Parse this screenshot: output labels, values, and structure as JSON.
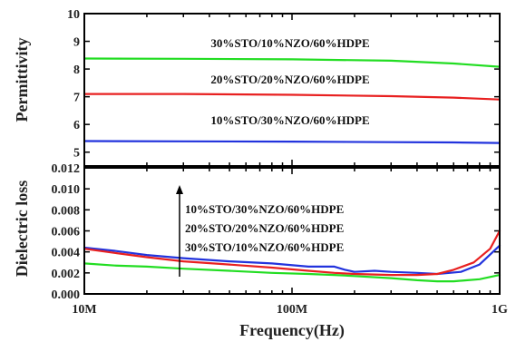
{
  "chart_data": [
    {
      "type": "line",
      "ylabel": "Permittivity",
      "ylim": [
        4.5,
        10
      ],
      "yticks": [
        "5",
        "6",
        "7",
        "8",
        "9",
        "10"
      ],
      "xscale": "log",
      "xlim": [
        10000000,
        1000000000
      ],
      "series": [
        {
          "name": "30%STO/10%NZO/60%HDPE",
          "color": "#22dd22",
          "x": [
            10000000,
            30000000,
            100000000,
            300000000,
            600000000,
            1000000000
          ],
          "y": [
            8.38,
            8.37,
            8.35,
            8.3,
            8.2,
            8.08
          ]
        },
        {
          "name": "20%STO/20%NZO/60%HDPE",
          "color": "#e82020",
          "x": [
            10000000,
            30000000,
            100000000,
            300000000,
            600000000,
            1000000000
          ],
          "y": [
            7.1,
            7.1,
            7.07,
            7.02,
            6.97,
            6.9
          ]
        },
        {
          "name": "10%STO/30%NZO/60%HDPE",
          "color": "#2233dd",
          "x": [
            10000000,
            30000000,
            100000000,
            300000000,
            600000000,
            1000000000
          ],
          "y": [
            5.4,
            5.39,
            5.38,
            5.36,
            5.35,
            5.33
          ]
        }
      ],
      "annotations": [
        "30%STO/10%NZO/60%HDPE",
        "20%STO/20%NZO/60%HDPE",
        "10%STO/30%NZO/60%HDPE"
      ]
    },
    {
      "type": "line",
      "ylabel": "Dielectric loss",
      "xlabel": "Frequency(Hz)",
      "ylim": [
        0,
        0.012
      ],
      "yticks": [
        "0.000",
        "0.002",
        "0.004",
        "0.006",
        "0.008",
        "0.010",
        "0.012"
      ],
      "xscale": "log",
      "xlim": [
        10000000,
        1000000000
      ],
      "xticks": [
        {
          "value": 10000000,
          "label": "10M"
        },
        {
          "value": 100000000,
          "label": "100M"
        },
        {
          "value": 1000000000,
          "label": "1G"
        }
      ],
      "series": [
        {
          "name": "10%STO/30%NZO/60%HDPE",
          "color": "#2233dd",
          "x": [
            10000000,
            14000000,
            20000000,
            30000000,
            50000000,
            80000000,
            120000000,
            160000000,
            180000000,
            200000000,
            250000000,
            300000000,
            400000000,
            500000000,
            650000000,
            800000000,
            1000000000
          ],
          "y": [
            0.0044,
            0.0041,
            0.0037,
            0.0034,
            0.0031,
            0.0029,
            0.0026,
            0.0026,
            0.0023,
            0.0021,
            0.0022,
            0.0021,
            0.002,
            0.0019,
            0.0021,
            0.0028,
            0.0046
          ]
        },
        {
          "name": "20%STO/20%NZO/60%HDPE",
          "color": "#e82020",
          "x": [
            10000000,
            14000000,
            20000000,
            30000000,
            50000000,
            80000000,
            120000000,
            160000000,
            200000000,
            300000000,
            400000000,
            500000000,
            600000000,
            750000000,
            900000000,
            1000000000
          ],
          "y": [
            0.0043,
            0.0039,
            0.0035,
            0.0031,
            0.0028,
            0.0025,
            0.0022,
            0.002,
            0.0019,
            0.0018,
            0.0018,
            0.0019,
            0.0023,
            0.003,
            0.0043,
            0.006
          ]
        },
        {
          "name": "30%STO/10%NZO/60%HDPE",
          "color": "#22dd22",
          "x": [
            10000000,
            14000000,
            20000000,
            30000000,
            50000000,
            80000000,
            120000000,
            160000000,
            200000000,
            300000000,
            400000000,
            500000000,
            600000000,
            700000000,
            800000000,
            1000000000
          ],
          "y": [
            0.0029,
            0.0027,
            0.0026,
            0.0024,
            0.0022,
            0.002,
            0.0019,
            0.0018,
            0.0017,
            0.0015,
            0.0013,
            0.0012,
            0.0012,
            0.0013,
            0.0014,
            0.0018
          ]
        }
      ],
      "annotations": [
        "10%STO/30%NZO/60%HDPE",
        "20%STO/20%NZO/60%HDPE",
        "30%STO/10%NZO/60%HDPE"
      ],
      "arrow": "up"
    }
  ]
}
